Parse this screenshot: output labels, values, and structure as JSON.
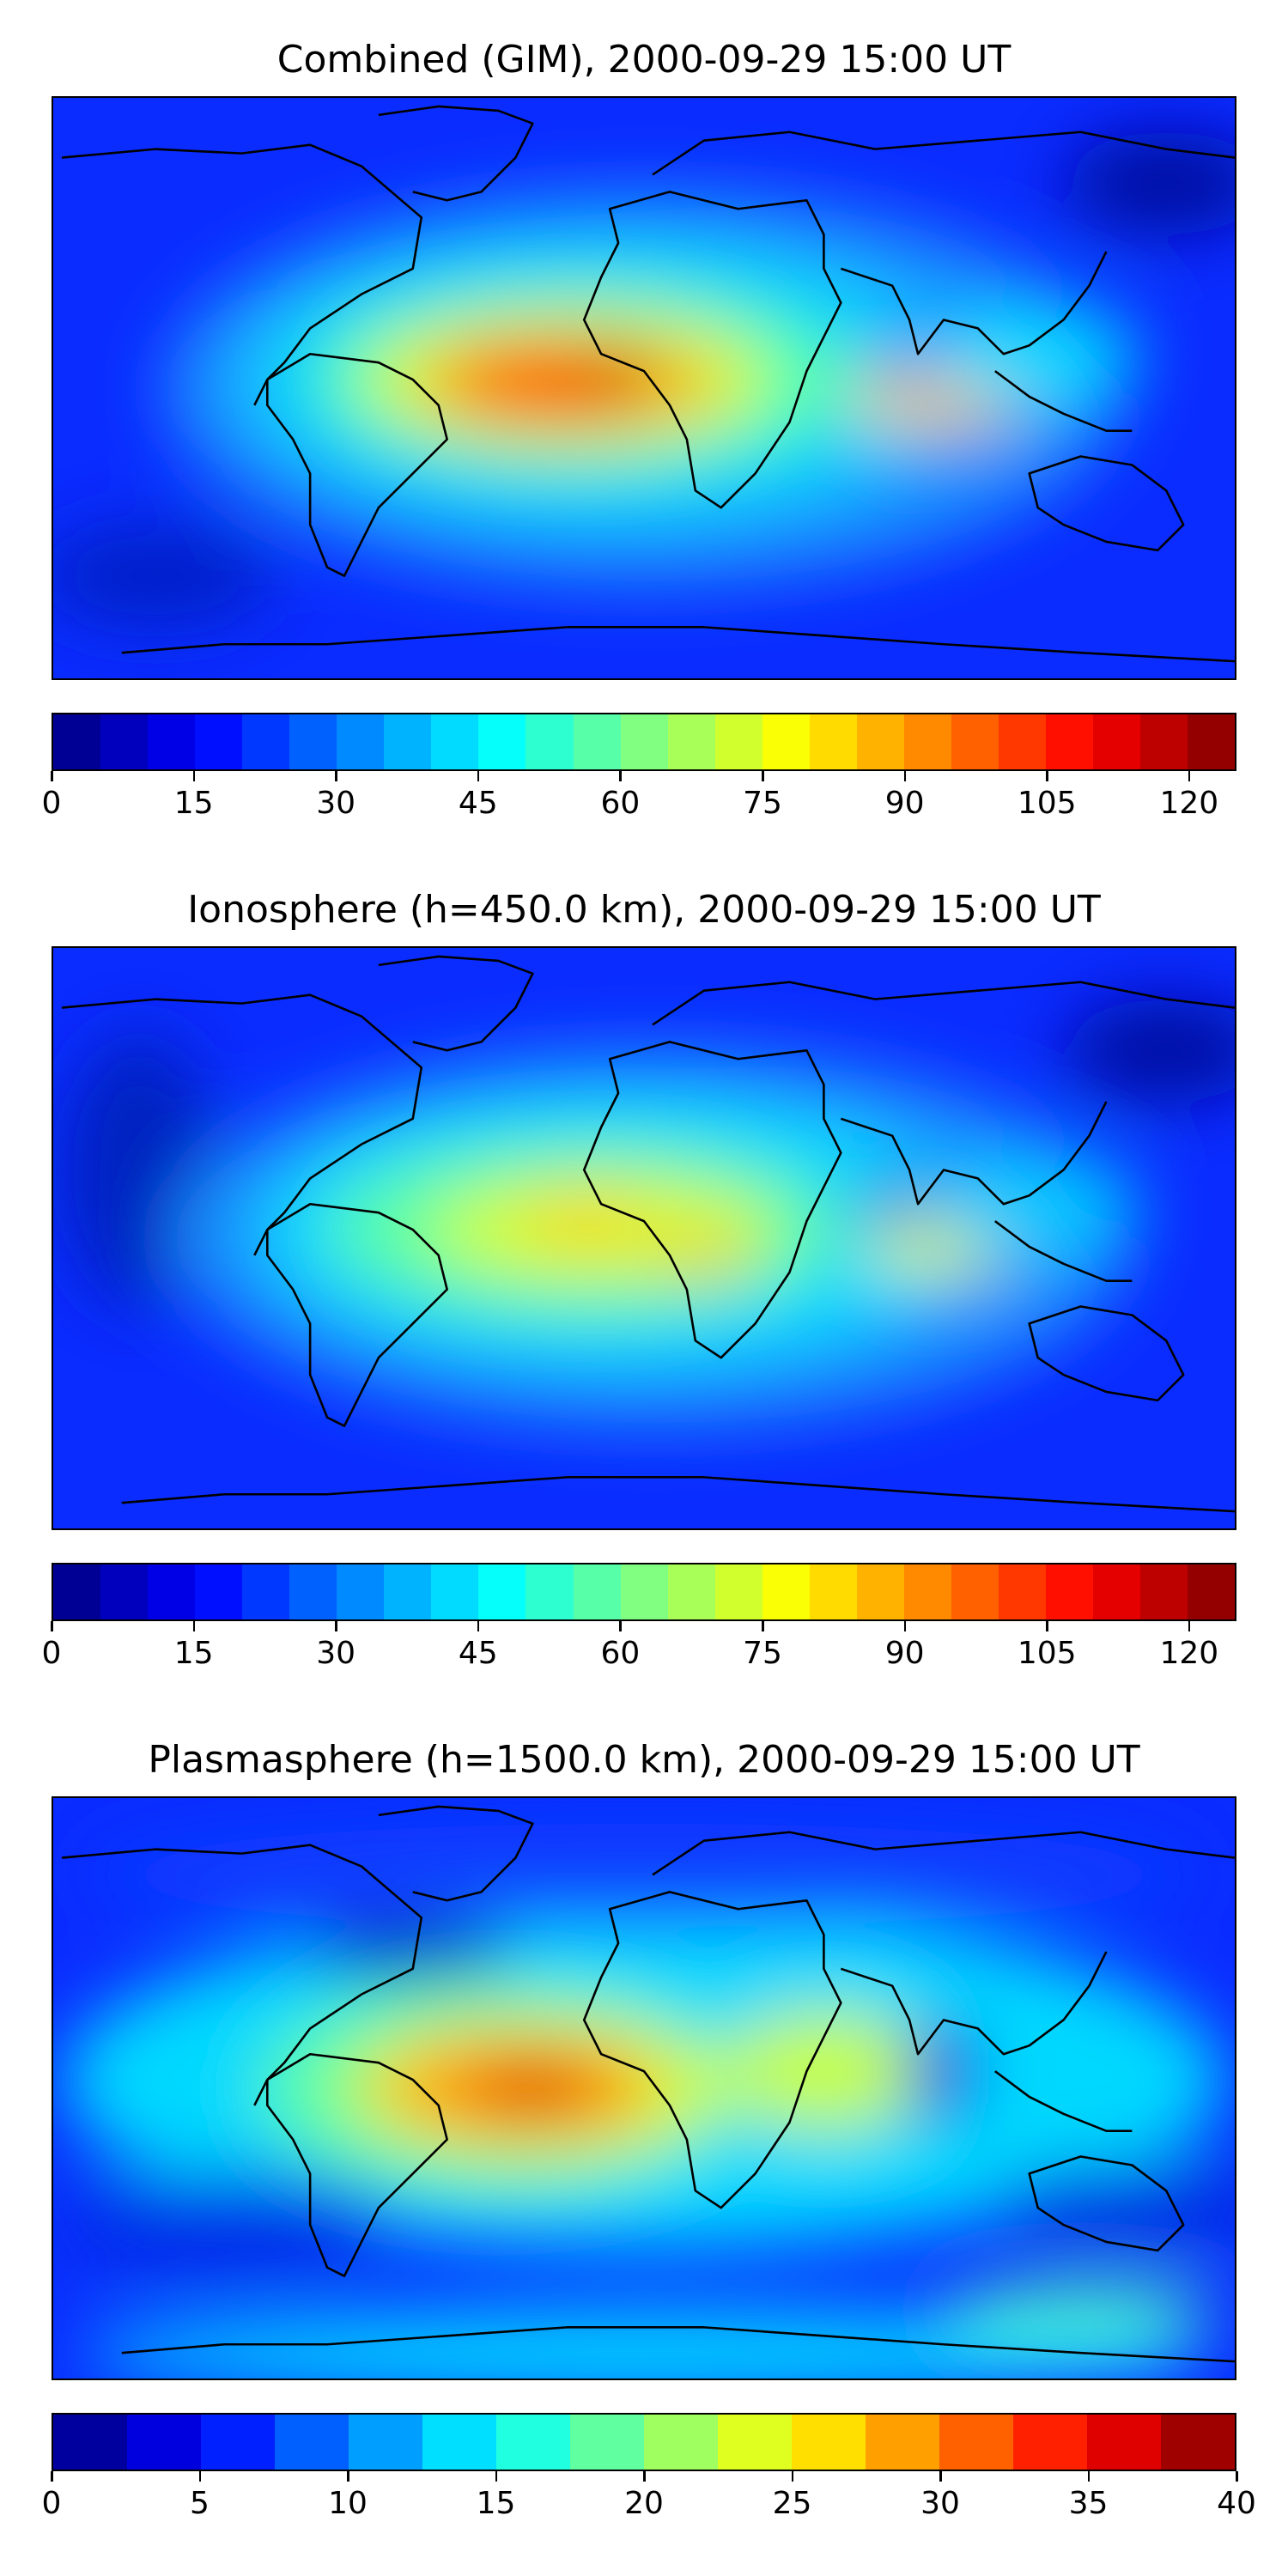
{
  "panels": [
    {
      "title": "Combined (GIM), 2000-09-29 15:00 UT",
      "colorbar": {
        "vmin": 0,
        "vmax": 125,
        "levels": 25,
        "tick_labels": [
          "0",
          "15",
          "30",
          "45",
          "60",
          "75",
          "90",
          "105",
          "120"
        ]
      }
    },
    {
      "title": "Ionosphere  (h=450.0 km), 2000-09-29 15:00 UT",
      "colorbar": {
        "vmin": 0,
        "vmax": 125,
        "levels": 25,
        "tick_labels": [
          "0",
          "15",
          "30",
          "45",
          "60",
          "75",
          "90",
          "105",
          "120"
        ]
      }
    },
    {
      "title": "Plasmasphere (h=1500.0 km), 2000-09-29 15:00 UT",
      "colorbar": {
        "vmin": 0,
        "vmax": 40,
        "levels": 16,
        "tick_labels": [
          "0",
          "5",
          "10",
          "15",
          "20",
          "25",
          "30",
          "35",
          "40"
        ]
      }
    }
  ],
  "colormap": "jet"
}
